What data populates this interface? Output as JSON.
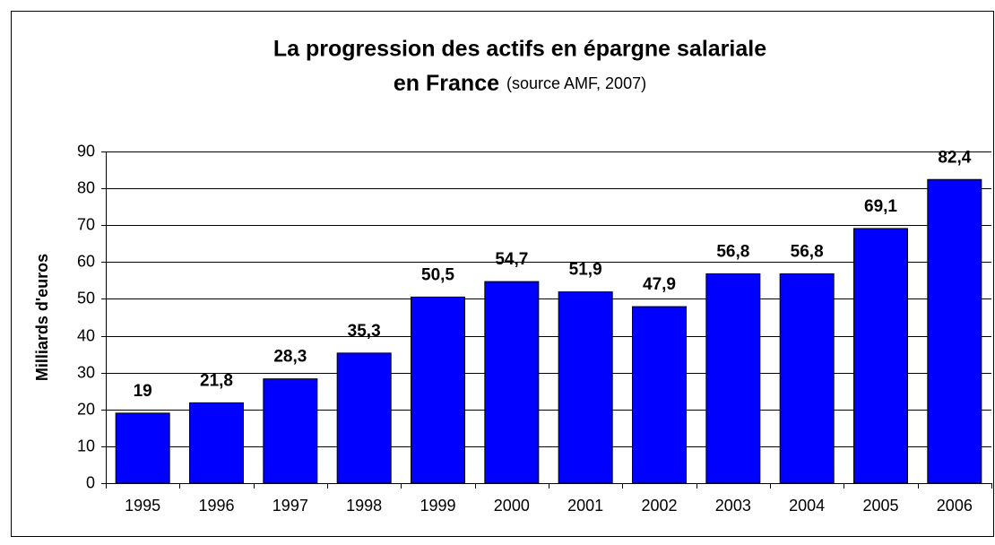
{
  "chart_data": {
    "type": "bar",
    "title": [
      "La progression des actifs en épargne salariale",
      "en France"
    ],
    "subtitle": "(source AMF, 2007)",
    "y_label": "Milliards d'euros",
    "categories": [
      "1995",
      "1996",
      "1997",
      "1998",
      "1999",
      "2000",
      "2001",
      "2002",
      "2003",
      "2004",
      "2005",
      "2006"
    ],
    "values": [
      19,
      21.8,
      28.3,
      35.3,
      50.5,
      54.7,
      51.9,
      47.9,
      56.8,
      56.8,
      69.1,
      82.4
    ],
    "value_labels": [
      "19",
      "21,8",
      "28,3",
      "35,3",
      "50,5",
      "54,7",
      "51,9",
      "47,9",
      "56,8",
      "56,8",
      "69,1",
      "82,4"
    ],
    "color": "#0000ff",
    "ylim": [
      0,
      90
    ],
    "yticks": [
      0,
      10,
      20,
      30,
      40,
      50,
      60,
      70,
      80,
      90
    ],
    "grid": true
  }
}
